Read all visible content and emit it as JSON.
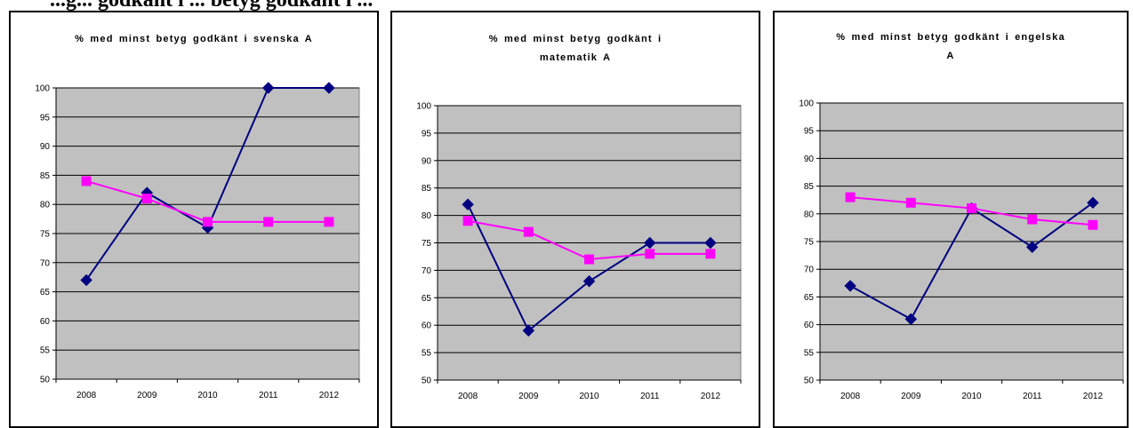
{
  "page": {
    "heading": "...g... godkänt i ... betyg godkänt i ..."
  },
  "colors": {
    "plot_background": "#c0c0c0",
    "series_blue": "#000080",
    "series_magenta": "#ff00ff",
    "gridline": "#000000"
  },
  "chart_data": [
    {
      "type": "line",
      "title": "% med minst betyg godkänt i svenska A",
      "title_lines": [
        "% med minst betyg godkänt i svenska A"
      ],
      "categories": [
        "2008",
        "2009",
        "2010",
        "2011",
        "2012"
      ],
      "ylim": [
        50,
        100
      ],
      "yticks": [
        "50",
        "55",
        "60",
        "65",
        "70",
        "75",
        "80",
        "85",
        "90",
        "95",
        "100"
      ],
      "grid": true,
      "series": [
        {
          "values": [
            67,
            82,
            76,
            100,
            100
          ],
          "marker": "diamond",
          "color": "#000080"
        },
        {
          "values": [
            84,
            81,
            77,
            77,
            77
          ],
          "marker": "square",
          "color": "#ff00ff"
        }
      ]
    },
    {
      "type": "line",
      "title": "% med minst betyg godkänt i matematik A",
      "title_lines": [
        "% med minst betyg godkänt i",
        "matematik A"
      ],
      "categories": [
        "2008",
        "2009",
        "2010",
        "2011",
        "2012"
      ],
      "ylim": [
        50,
        100
      ],
      "yticks": [
        "50",
        "55",
        "60",
        "65",
        "70",
        "75",
        "80",
        "85",
        "90",
        "95",
        "100"
      ],
      "grid": true,
      "series": [
        {
          "values": [
            82,
            59,
            68,
            75,
            75
          ],
          "marker": "diamond",
          "color": "#000080"
        },
        {
          "values": [
            79,
            77,
            72,
            73,
            73
          ],
          "marker": "square",
          "color": "#ff00ff"
        }
      ]
    },
    {
      "type": "line",
      "title": "% med minst betyg godkänt i engelska A",
      "title_lines": [
        "% med minst betyg godkänt i engelska",
        "A"
      ],
      "categories": [
        "2008",
        "2009",
        "2010",
        "2011",
        "2012"
      ],
      "ylim": [
        50,
        100
      ],
      "yticks": [
        "50",
        "55",
        "60",
        "65",
        "70",
        "75",
        "80",
        "85",
        "90",
        "95",
        "100"
      ],
      "grid": true,
      "series": [
        {
          "values": [
            67,
            61,
            81,
            74,
            82
          ],
          "marker": "diamond",
          "color": "#000080"
        },
        {
          "values": [
            83,
            82,
            81,
            79,
            78
          ],
          "marker": "square",
          "color": "#ff00ff"
        }
      ]
    }
  ]
}
